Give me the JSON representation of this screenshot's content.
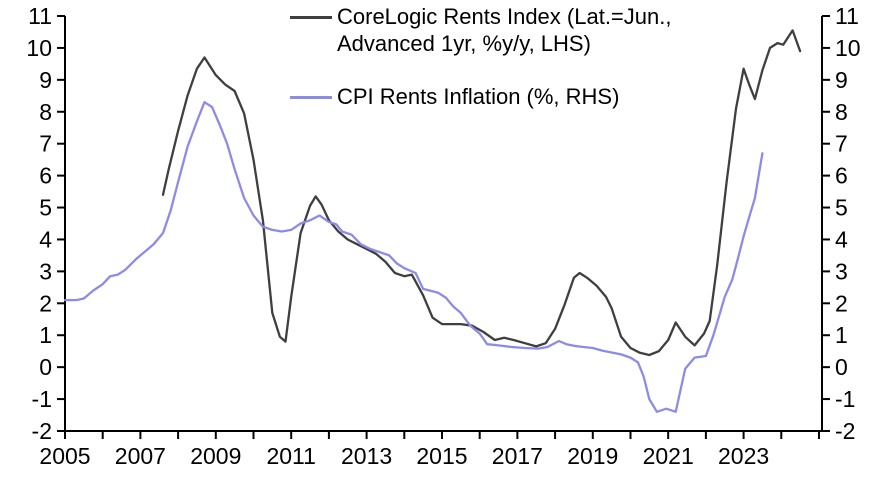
{
  "chart_data": {
    "type": "line",
    "title": "",
    "grid": false,
    "legend_position": "top-center",
    "x_axis": {
      "min": 2005,
      "max": 2025.08,
      "labeled_tick_years": [
        "2005",
        "2007",
        "2009",
        "2011",
        "2013",
        "2015",
        "2017",
        "2019",
        "2021",
        "2023"
      ],
      "minor_tick_start": 2005,
      "minor_tick_end": 2025,
      "minor_tick_step_years": 1
    },
    "y_axis_left": {
      "min": -2,
      "max": 11,
      "tick_labels": [
        "-2",
        "-1",
        "0",
        "1",
        "2",
        "3",
        "4",
        "5",
        "6",
        "7",
        "8",
        "9",
        "10",
        "11"
      ]
    },
    "y_axis_right": {
      "min": -2,
      "max": 11,
      "tick_labels": [
        "-2",
        "-1",
        "0",
        "1",
        "2",
        "3",
        "4",
        "5",
        "6",
        "7",
        "8",
        "9",
        "10",
        "11"
      ]
    },
    "series": [
      {
        "name": "CoreLogic Rents Index (Lat.=Jun., Advanced 1yr, %y/y, LHS)",
        "legend_lines": [
          "CoreLogic Rents Index (Lat.=Jun.,",
          "Advanced 1yr, %y/y, LHS)"
        ],
        "axis": "LHS",
        "color": "#3f3f3f",
        "points": [
          [
            2007.6,
            5.4
          ],
          [
            2007.75,
            6.2
          ],
          [
            2008.0,
            7.4
          ],
          [
            2008.25,
            8.5
          ],
          [
            2008.5,
            9.35
          ],
          [
            2008.7,
            9.7
          ],
          [
            2009.0,
            9.15
          ],
          [
            2009.25,
            8.85
          ],
          [
            2009.5,
            8.65
          ],
          [
            2009.75,
            7.95
          ],
          [
            2010.0,
            6.5
          ],
          [
            2010.25,
            4.6
          ],
          [
            2010.5,
            1.7
          ],
          [
            2010.7,
            0.95
          ],
          [
            2010.85,
            0.8
          ],
          [
            2011.0,
            2.2
          ],
          [
            2011.25,
            4.2
          ],
          [
            2011.5,
            5.05
          ],
          [
            2011.65,
            5.35
          ],
          [
            2011.8,
            5.1
          ],
          [
            2012.0,
            4.6
          ],
          [
            2012.25,
            4.25
          ],
          [
            2012.5,
            4.0
          ],
          [
            2012.75,
            3.85
          ],
          [
            2013.0,
            3.7
          ],
          [
            2013.25,
            3.55
          ],
          [
            2013.5,
            3.3
          ],
          [
            2013.75,
            2.95
          ],
          [
            2014.0,
            2.85
          ],
          [
            2014.2,
            2.9
          ],
          [
            2014.5,
            2.25
          ],
          [
            2014.75,
            1.55
          ],
          [
            2015.0,
            1.35
          ],
          [
            2015.5,
            1.35
          ],
          [
            2015.8,
            1.3
          ],
          [
            2016.1,
            1.1
          ],
          [
            2016.4,
            0.85
          ],
          [
            2016.65,
            0.92
          ],
          [
            2016.9,
            0.85
          ],
          [
            2017.2,
            0.75
          ],
          [
            2017.5,
            0.65
          ],
          [
            2017.75,
            0.75
          ],
          [
            2018.0,
            1.2
          ],
          [
            2018.25,
            1.95
          ],
          [
            2018.5,
            2.8
          ],
          [
            2018.65,
            2.95
          ],
          [
            2018.85,
            2.8
          ],
          [
            2019.1,
            2.55
          ],
          [
            2019.35,
            2.2
          ],
          [
            2019.5,
            1.85
          ],
          [
            2019.75,
            0.95
          ],
          [
            2020.0,
            0.6
          ],
          [
            2020.25,
            0.45
          ],
          [
            2020.5,
            0.38
          ],
          [
            2020.75,
            0.5
          ],
          [
            2021.0,
            0.85
          ],
          [
            2021.2,
            1.4
          ],
          [
            2021.45,
            0.95
          ],
          [
            2021.7,
            0.68
          ],
          [
            2021.95,
            1.05
          ],
          [
            2022.1,
            1.45
          ],
          [
            2022.3,
            3.2
          ],
          [
            2022.55,
            5.8
          ],
          [
            2022.8,
            8.1
          ],
          [
            2023.0,
            9.35
          ],
          [
            2023.15,
            8.85
          ],
          [
            2023.3,
            8.4
          ],
          [
            2023.5,
            9.3
          ],
          [
            2023.7,
            10.0
          ],
          [
            2023.9,
            10.15
          ],
          [
            2024.05,
            10.1
          ],
          [
            2024.3,
            10.55
          ],
          [
            2024.5,
            9.9
          ]
        ]
      },
      {
        "name": "CPI Rents Inflation (%, RHS)",
        "legend_lines": [
          "CPI Rents Inflation (%, RHS)"
        ],
        "axis": "RHS",
        "color": "#8c8ce8",
        "points": [
          [
            2005.0,
            2.1
          ],
          [
            2005.3,
            2.1
          ],
          [
            2005.5,
            2.15
          ],
          [
            2005.75,
            2.4
          ],
          [
            2006.0,
            2.6
          ],
          [
            2006.2,
            2.85
          ],
          [
            2006.4,
            2.9
          ],
          [
            2006.6,
            3.05
          ],
          [
            2006.9,
            3.4
          ],
          [
            2007.1,
            3.6
          ],
          [
            2007.35,
            3.85
          ],
          [
            2007.6,
            4.2
          ],
          [
            2007.8,
            4.9
          ],
          [
            2008.0,
            5.8
          ],
          [
            2008.25,
            6.9
          ],
          [
            2008.5,
            7.7
          ],
          [
            2008.7,
            8.3
          ],
          [
            2008.9,
            8.15
          ],
          [
            2009.1,
            7.6
          ],
          [
            2009.3,
            7.0
          ],
          [
            2009.5,
            6.2
          ],
          [
            2009.75,
            5.3
          ],
          [
            2010.0,
            4.75
          ],
          [
            2010.25,
            4.4
          ],
          [
            2010.5,
            4.3
          ],
          [
            2010.75,
            4.25
          ],
          [
            2011.0,
            4.3
          ],
          [
            2011.25,
            4.5
          ],
          [
            2011.5,
            4.6
          ],
          [
            2011.75,
            4.75
          ],
          [
            2012.0,
            4.55
          ],
          [
            2012.2,
            4.47
          ],
          [
            2012.35,
            4.25
          ],
          [
            2012.6,
            4.15
          ],
          [
            2012.85,
            3.85
          ],
          [
            2013.1,
            3.7
          ],
          [
            2013.35,
            3.6
          ],
          [
            2013.6,
            3.5
          ],
          [
            2013.8,
            3.25
          ],
          [
            2014.0,
            3.1
          ],
          [
            2014.3,
            2.95
          ],
          [
            2014.5,
            2.45
          ],
          [
            2014.9,
            2.33
          ],
          [
            2015.1,
            2.18
          ],
          [
            2015.3,
            1.9
          ],
          [
            2015.5,
            1.7
          ],
          [
            2015.75,
            1.3
          ],
          [
            2016.0,
            1.05
          ],
          [
            2016.2,
            0.72
          ],
          [
            2016.5,
            0.68
          ],
          [
            2016.85,
            0.63
          ],
          [
            2017.2,
            0.6
          ],
          [
            2017.55,
            0.58
          ],
          [
            2017.8,
            0.63
          ],
          [
            2018.1,
            0.82
          ],
          [
            2018.3,
            0.72
          ],
          [
            2018.5,
            0.67
          ],
          [
            2018.75,
            0.63
          ],
          [
            2019.0,
            0.6
          ],
          [
            2019.25,
            0.52
          ],
          [
            2019.5,
            0.46
          ],
          [
            2019.75,
            0.4
          ],
          [
            2020.0,
            0.3
          ],
          [
            2020.2,
            0.15
          ],
          [
            2020.35,
            -0.3
          ],
          [
            2020.5,
            -1.0
          ],
          [
            2020.7,
            -1.4
          ],
          [
            2020.95,
            -1.3
          ],
          [
            2021.2,
            -1.4
          ],
          [
            2021.45,
            -0.05
          ],
          [
            2021.7,
            0.3
          ],
          [
            2022.0,
            0.35
          ],
          [
            2022.2,
            1.0
          ],
          [
            2022.35,
            1.6
          ],
          [
            2022.5,
            2.2
          ],
          [
            2022.7,
            2.75
          ],
          [
            2022.85,
            3.4
          ],
          [
            2023.0,
            4.1
          ],
          [
            2023.15,
            4.7
          ],
          [
            2023.3,
            5.3
          ],
          [
            2023.5,
            6.7
          ]
        ]
      }
    ]
  },
  "colors": {
    "background": "#ffffff",
    "axis": "#000000",
    "text": "#000000",
    "series_corelogic": "#3f3f3f",
    "series_cpi": "#8c8ce8"
  }
}
